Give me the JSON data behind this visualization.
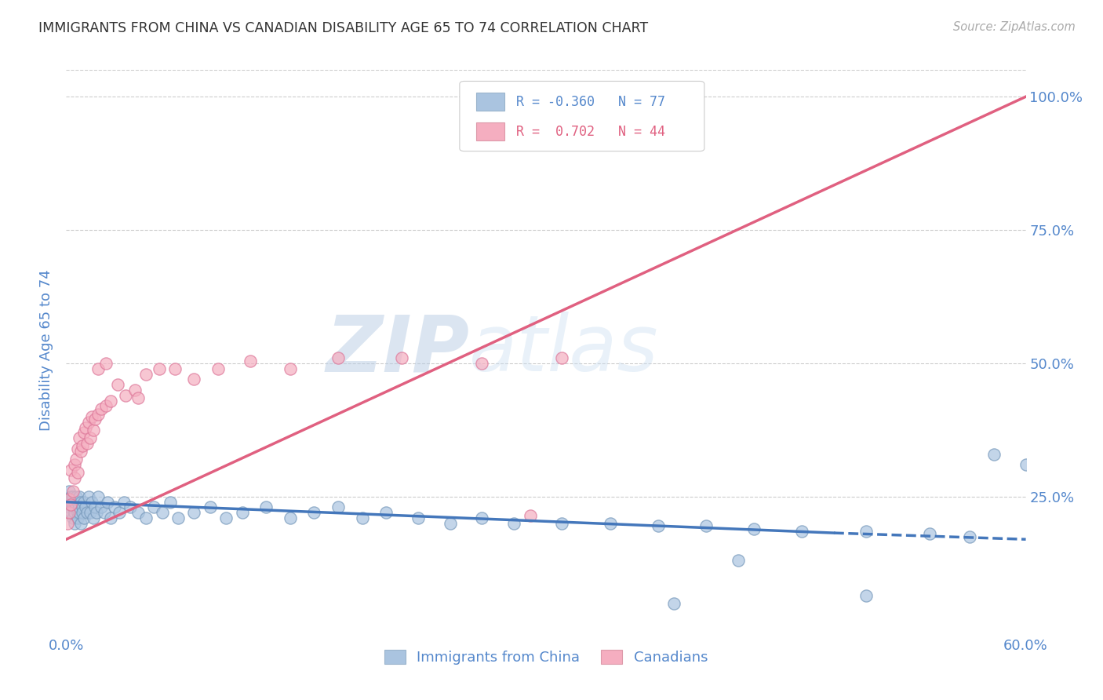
{
  "title": "IMMIGRANTS FROM CHINA VS CANADIAN DISABILITY AGE 65 TO 74 CORRELATION CHART",
  "source": "Source: ZipAtlas.com",
  "ylabel": "Disability Age 65 to 74",
  "legend_blue_label": "Immigrants from China",
  "legend_pink_label": "Canadians",
  "legend_blue_R": "R = -0.360",
  "legend_blue_N": "N = 77",
  "legend_pink_R": "R =  0.702",
  "legend_pink_N": "N = 44",
  "blue_color": "#aac4e0",
  "pink_color": "#f5aec0",
  "blue_line_color": "#4477bb",
  "pink_line_color": "#e06080",
  "watermark_zip": "ZIP",
  "watermark_atlas": "atlas",
  "background_color": "#ffffff",
  "grid_color": "#cccccc",
  "title_color": "#333333",
  "right_axis_color": "#5588cc",
  "blue_scatter_x": [
    0.001,
    0.002,
    0.002,
    0.003,
    0.003,
    0.003,
    0.004,
    0.004,
    0.004,
    0.005,
    0.005,
    0.005,
    0.006,
    0.006,
    0.007,
    0.007,
    0.007,
    0.008,
    0.008,
    0.008,
    0.009,
    0.009,
    0.01,
    0.01,
    0.011,
    0.011,
    0.012,
    0.013,
    0.014,
    0.015,
    0.016,
    0.017,
    0.018,
    0.019,
    0.02,
    0.022,
    0.024,
    0.026,
    0.028,
    0.03,
    0.033,
    0.036,
    0.04,
    0.045,
    0.05,
    0.055,
    0.06,
    0.065,
    0.07,
    0.08,
    0.09,
    0.1,
    0.11,
    0.125,
    0.14,
    0.155,
    0.17,
    0.185,
    0.2,
    0.22,
    0.24,
    0.26,
    0.28,
    0.31,
    0.34,
    0.37,
    0.4,
    0.43,
    0.46,
    0.5,
    0.54,
    0.565,
    0.58,
    0.6,
    0.38,
    0.42,
    0.5
  ],
  "blue_scatter_y": [
    0.24,
    0.23,
    0.26,
    0.22,
    0.24,
    0.25,
    0.23,
    0.21,
    0.25,
    0.22,
    0.24,
    0.2,
    0.23,
    0.25,
    0.22,
    0.24,
    0.21,
    0.23,
    0.22,
    0.25,
    0.24,
    0.2,
    0.23,
    0.22,
    0.24,
    0.21,
    0.23,
    0.22,
    0.25,
    0.22,
    0.24,
    0.21,
    0.23,
    0.22,
    0.25,
    0.23,
    0.22,
    0.24,
    0.21,
    0.23,
    0.22,
    0.24,
    0.23,
    0.22,
    0.21,
    0.23,
    0.22,
    0.24,
    0.21,
    0.22,
    0.23,
    0.21,
    0.22,
    0.23,
    0.21,
    0.22,
    0.23,
    0.21,
    0.22,
    0.21,
    0.2,
    0.21,
    0.2,
    0.2,
    0.2,
    0.195,
    0.195,
    0.19,
    0.185,
    0.185,
    0.18,
    0.175,
    0.33,
    0.31,
    0.05,
    0.13,
    0.065
  ],
  "pink_scatter_x": [
    0.001,
    0.002,
    0.002,
    0.003,
    0.003,
    0.004,
    0.005,
    0.005,
    0.006,
    0.007,
    0.007,
    0.008,
    0.009,
    0.01,
    0.011,
    0.012,
    0.013,
    0.014,
    0.015,
    0.016,
    0.017,
    0.018,
    0.02,
    0.022,
    0.025,
    0.028,
    0.032,
    0.037,
    0.043,
    0.05,
    0.058,
    0.068,
    0.08,
    0.095,
    0.115,
    0.14,
    0.17,
    0.21,
    0.26,
    0.31,
    0.02,
    0.025,
    0.045,
    0.29
  ],
  "pink_scatter_y": [
    0.2,
    0.22,
    0.245,
    0.235,
    0.3,
    0.26,
    0.285,
    0.31,
    0.32,
    0.295,
    0.34,
    0.36,
    0.335,
    0.345,
    0.37,
    0.38,
    0.35,
    0.39,
    0.36,
    0.4,
    0.375,
    0.395,
    0.405,
    0.415,
    0.42,
    0.43,
    0.46,
    0.44,
    0.45,
    0.48,
    0.49,
    0.49,
    0.47,
    0.49,
    0.505,
    0.49,
    0.51,
    0.51,
    0.5,
    0.51,
    0.49,
    0.5,
    0.435,
    0.215
  ],
  "blue_line_x": [
    0.0,
    0.6
  ],
  "blue_line_y": [
    0.24,
    0.17
  ],
  "pink_line_x": [
    0.0,
    0.6
  ],
  "pink_line_y": [
    0.17,
    1.0
  ],
  "xlim": [
    0.0,
    0.6
  ],
  "ylim": [
    0.0,
    1.05
  ],
  "x_tick_positions": [
    0.0,
    0.1,
    0.2,
    0.3,
    0.4,
    0.5,
    0.6
  ],
  "x_tick_labels": [
    "0.0%",
    "",
    "",
    "",
    "",
    "",
    "60.0%"
  ],
  "y_tick_positions": [
    0.25,
    0.5,
    0.75,
    1.0
  ],
  "y_tick_labels": [
    "25.0%",
    "50.0%",
    "75.0%",
    "100.0%"
  ],
  "figsize": [
    14.06,
    8.92
  ],
  "dpi": 100
}
